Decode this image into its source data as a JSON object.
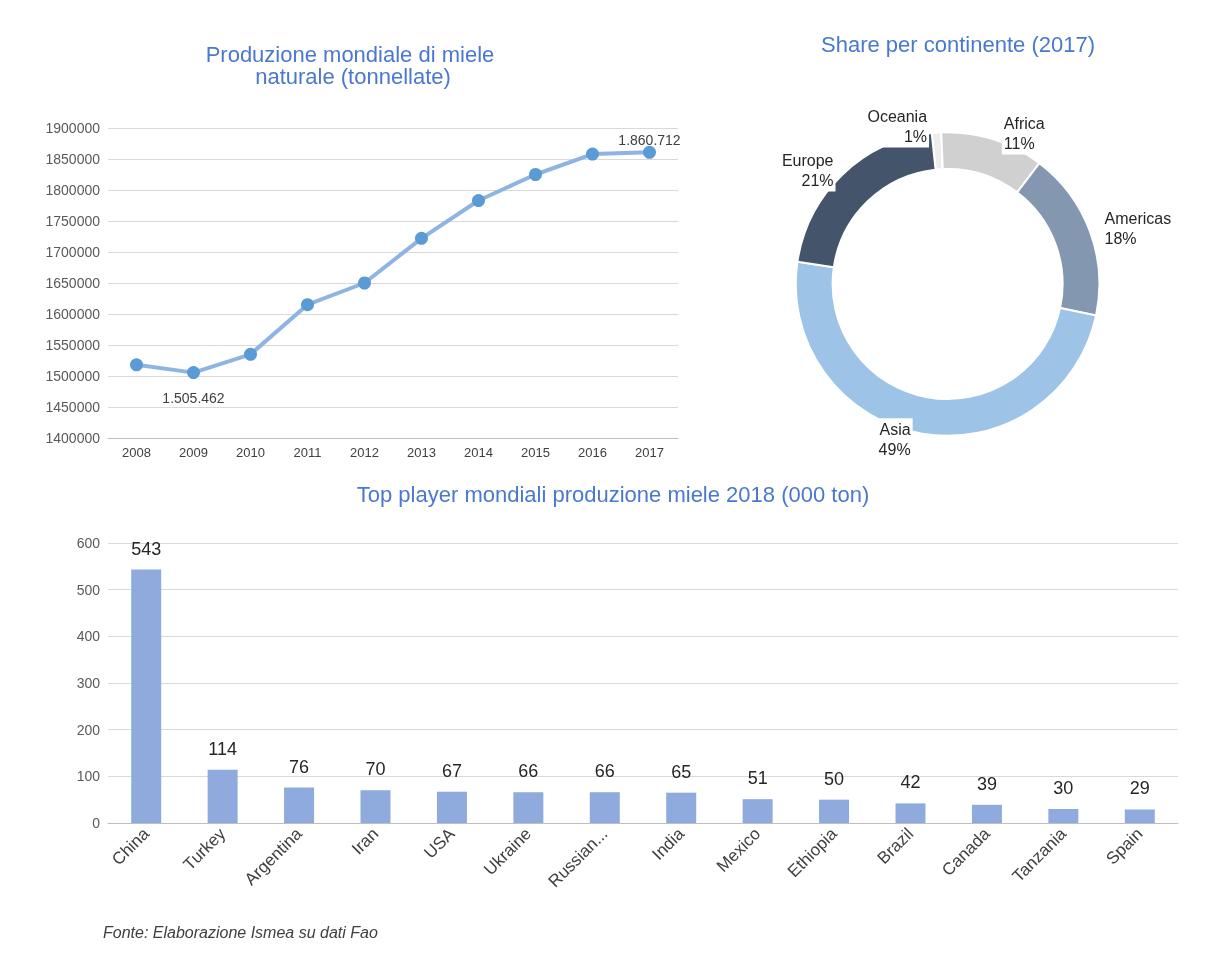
{
  "chart_data": [
    {
      "type": "line",
      "title": "Produzione mondiale di miele naturale (tonnellate)",
      "categories": [
        "2008",
        "2009",
        "2010",
        "2011",
        "2012",
        "2013",
        "2014",
        "2015",
        "2016",
        "2017"
      ],
      "series": [
        {
          "color": "#5b9bd5",
          "values": [
            1518000,
            1505462,
            1535000,
            1615000,
            1650000,
            1722000,
            1783000,
            1825000,
            1858000,
            1860712
          ],
          "value_labels": [
            null,
            "1.505.462",
            null,
            null,
            null,
            null,
            null,
            null,
            null,
            "1.860.712"
          ]
        }
      ],
      "ylim": [
        1400000,
        1900000
      ],
      "yticks": [
        1400000,
        1450000,
        1500000,
        1550000,
        1600000,
        1650000,
        1700000,
        1750000,
        1800000,
        1850000,
        1900000
      ],
      "grid": "y",
      "marker": "circle",
      "line_style": "solid"
    },
    {
      "type": "donut",
      "title": "Share per continente (2017)",
      "categories": [
        "Oceania",
        "Africa",
        "Americas",
        "Asia",
        "Europe"
      ],
      "values": [
        1,
        11,
        18,
        49,
        21
      ],
      "value_labels": [
        "1%",
        "11%",
        "18%",
        "49%",
        "21%"
      ],
      "colors": [
        "#ededed",
        "#d0d0d0",
        "#8497b0",
        "#9dc3e6",
        "#44546a"
      ]
    },
    {
      "type": "bar",
      "title": "Top player mondiali produzione miele 2018 (000 ton)",
      "categories": [
        "China",
        "Turkey",
        "Argentina",
        "Iran",
        "USA",
        "Ukraine",
        "Russian...",
        "India",
        "Mexico",
        "Ethiopia",
        "Brazil",
        "Canada",
        "Tanzania",
        "Spain"
      ],
      "values": [
        543,
        114,
        76,
        70,
        67,
        66,
        66,
        65,
        51,
        50,
        42,
        39,
        30,
        29
      ],
      "color": "#8faadc",
      "ylim": [
        0,
        600
      ],
      "yticks": [
        0,
        100,
        200,
        300,
        400,
        500,
        600
      ],
      "grid": "y",
      "data_labels": true,
      "annotations": [
        "Fonte: Elaborazione Ismea su dati Fao"
      ]
    }
  ]
}
